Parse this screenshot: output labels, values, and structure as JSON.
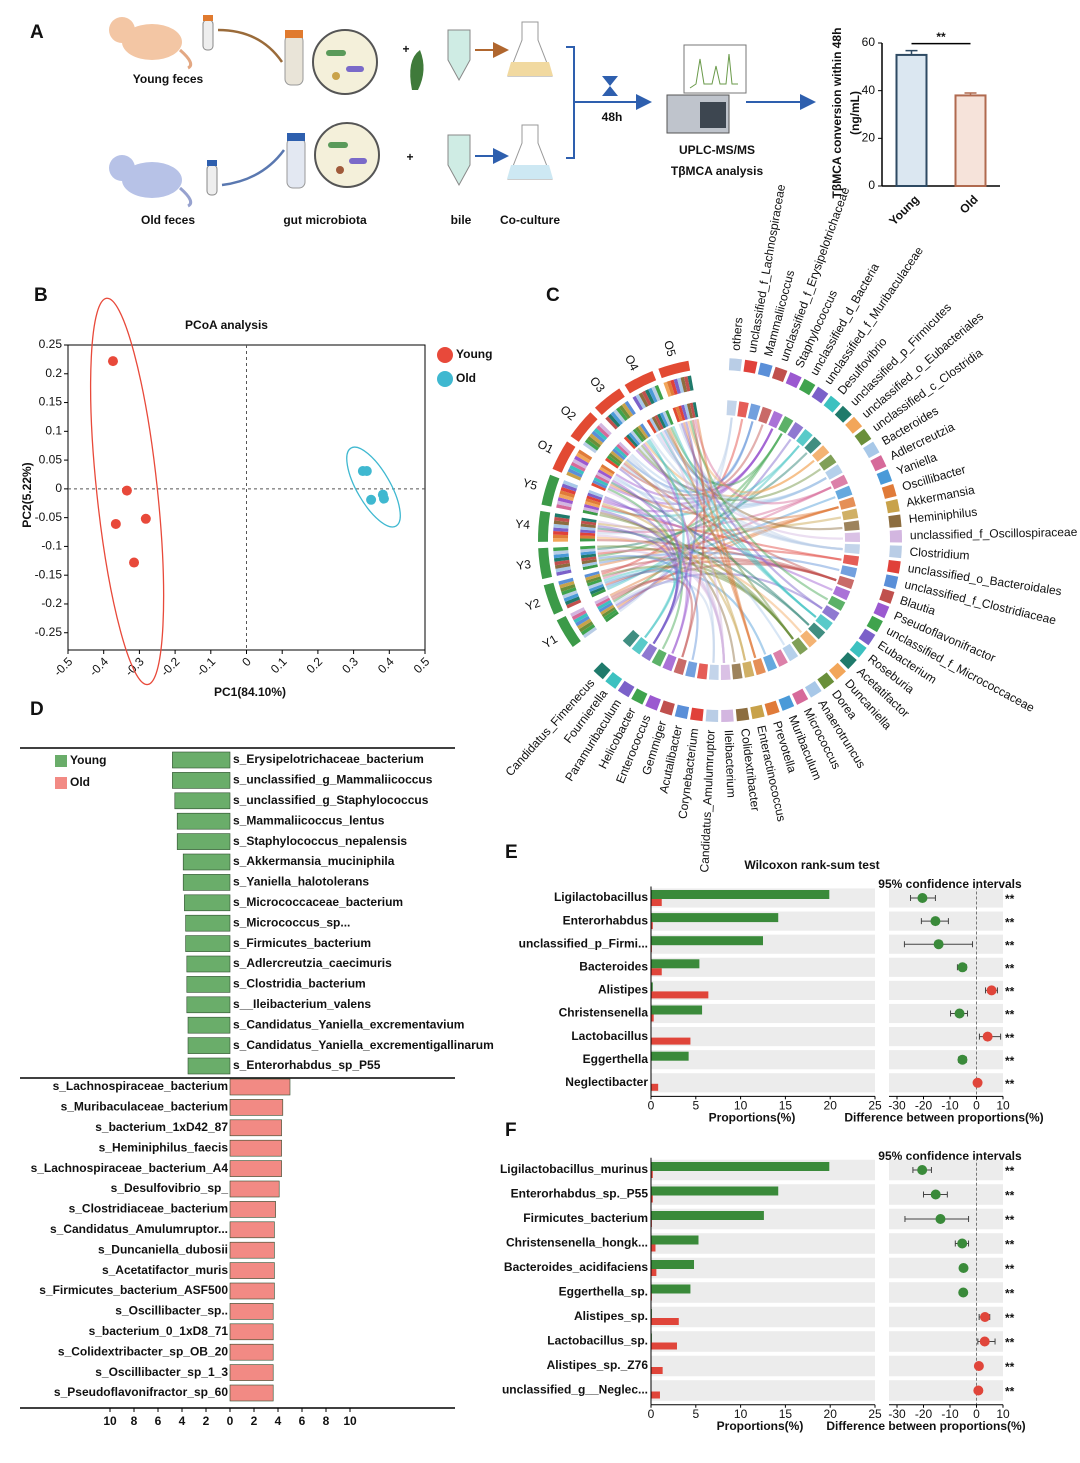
{
  "panel_labels": [
    "A",
    "B",
    "C",
    "D",
    "E",
    "F"
  ],
  "diagram": {
    "young_label": "Young feces",
    "old_label": "Old feces",
    "microbiota_label": "gut microbiota",
    "bile_label": "bile",
    "coculture_label": "Co-culture",
    "time_label": "48h",
    "method_line1": "UPLC-MS/MS",
    "method_line2": "TβMCA analysis"
  },
  "chart_data": [
    {
      "type": "bar",
      "ylabel": "TβMCA conversion within 48h",
      "ylabel_unit": "(ng/mL)",
      "categories": [
        "Young",
        "Old"
      ],
      "values": [
        55,
        38
      ],
      "errors": [
        1.8,
        1.0
      ],
      "colors": [
        "#dbe7f1",
        "#f6e3da"
      ],
      "edge_colors": [
        "#2e4a63",
        "#b06a4f"
      ],
      "ylim": [
        0,
        60
      ],
      "yticks": [
        0,
        20,
        40,
        60
      ],
      "annotation": "**"
    },
    {
      "type": "scatter",
      "title": "PCoA analysis",
      "xlabel": "PC1(84.10%)",
      "ylabel": "PC2(5.22%)",
      "xlim": [
        -0.5,
        0.5
      ],
      "xticks": [
        -0.5,
        -0.4,
        -0.3,
        -0.2,
        -0.1,
        0,
        0.1,
        0.2,
        0.3,
        0.4,
        0.5
      ],
      "ylim": [
        -0.28,
        0.25
      ],
      "yticks": [
        0.25,
        0.2,
        0.15,
        0.1,
        0.05,
        0,
        -0.05,
        -0.1,
        -0.15,
        -0.2,
        -0.25
      ],
      "legend": "right-outside",
      "series": [
        {
          "name": "Young",
          "color": "#e8493a",
          "x": [
            -0.374,
            -0.335,
            -0.366,
            -0.282,
            -0.315
          ],
          "y": [
            0.222,
            -0.003,
            -0.061,
            -0.052,
            -0.128
          ]
        },
        {
          "name": "Old",
          "color": "#3fb8d0",
          "x": [
            0.326,
            0.337,
            0.349,
            0.382,
            0.385
          ],
          "y": [
            0.031,
            0.031,
            -0.019,
            -0.01,
            -0.017
          ]
        }
      ]
    },
    {
      "type": "chord",
      "samples": [
        "Y1",
        "Y2",
        "Y3",
        "Y4",
        "Y5",
        "O1",
        "O2",
        "O3",
        "O4",
        "O5"
      ],
      "sample_colors": [
        "#3c9a48",
        "#3c9a48",
        "#3c9a48",
        "#3c9a48",
        "#3c9a48",
        "#e24a33",
        "#e24a33",
        "#e24a33",
        "#e24a33",
        "#e24a33"
      ],
      "taxa": [
        "others",
        "unclassified_f_Lachnospiraceae",
        "Mammaliicoccus",
        "unclassified_f_Erysipelotrichaceae",
        "Staphylococcus",
        "unclassified_d_Bacteria",
        "unclassified_f_Muribaculaceae",
        "Desulfovibrio",
        "unclassified_p_Firmicutes",
        "unclassified_o_Eubacteriales",
        "unclassified_c_Clostridia",
        "Bacteroides",
        "Adlercreutzia",
        "Yaniella",
        "Oscillibacter",
        "Akkermansia",
        "Heminiphilus",
        "unclassified_f_Oscillospiraceae",
        "Clostridium",
        "unclassified_o_Bacteroidales",
        "unclassified_f_Clostridiaceae",
        "Blautia",
        "Pseudoflavonifractor",
        "unclassified_f_Micrococcaceae",
        "Eubacterium",
        "Roseburia",
        "Acetatifactor",
        "Duncaniella",
        "Dorea",
        "Anaerotruncus",
        "Micrococcus",
        "Muribaculum",
        "Prevotella",
        "Enteractinococcus",
        "Colidextribacter",
        "Ileibacterium",
        "Candidatus_Amulumruptor",
        "Corynebacterium",
        "Acutalibacter",
        "Gemmiger",
        "Enterococcus",
        "Helicobacter",
        "Paramuribaculum",
        "Fournierella",
        "Candidatus_Fimenecus"
      ],
      "palette": [
        "#b9cde6",
        "#e0413a",
        "#5a8fd8",
        "#c0504d",
        "#9b59d0",
        "#3fa34d",
        "#7b61c9",
        "#3cc1c0",
        "#1f7a6b",
        "#f2a65a",
        "#6a8f3a",
        "#a8c8e8",
        "#d66a9a",
        "#4a9ad8",
        "#e07b39",
        "#c8a24a",
        "#8c6d3f",
        "#d3b6e0"
      ]
    },
    {
      "type": "diverging_bar",
      "xlim": [
        -10,
        10
      ],
      "xticks": [
        {
          "value": -10,
          "label": "10"
        },
        {
          "value": -8,
          "label": "8"
        },
        {
          "value": -6,
          "label": "6"
        },
        {
          "value": -4,
          "label": "4"
        },
        {
          "value": -2,
          "label": "2"
        },
        0,
        2,
        4,
        6,
        8,
        10
      ],
      "series": [
        {
          "name": "Young",
          "color": "#6aad6a",
          "categories": [
            "s_Erysipelotrichaceae_bacterium",
            "s_unclassified_g_Mammaliicoccus",
            "s_unclassified_g_Staphylococcus",
            "s_Mammaliicoccus_lentus",
            "s_Staphylococcus_nepalensis",
            "s_Akkermansia_muciniphila",
            "s_Yaniella_halotolerans",
            "s_Micrococcaceae_bacterium",
            "s_Micrococcus_sp...",
            "s_Firmicutes_bacterium",
            "s_Adlercreutzia_caecimuris",
            "s_Clostridia_bacterium",
            "s__Ileibacterium_valens",
            "s_Candidatus_Yaniella_excrementavium",
            "s_Candidatus_Yaniella_excrementigallinarum",
            "s_Enterorhabdus_sp_P55"
          ],
          "values": [
            -4.8,
            -4.8,
            -4.6,
            -4.4,
            -4.4,
            -3.9,
            -3.9,
            -3.8,
            -3.7,
            -3.7,
            -3.6,
            -3.6,
            -3.6,
            -3.5,
            -3.5,
            -3.5
          ]
        },
        {
          "name": "Old",
          "color": "#f28a84",
          "categories": [
            "s_Lachnospiraceae_bacterium",
            "s_Muribaculaceae_bacterium",
            "s_bacterium_1xD42_87",
            "s_Heminiphilus_faecis",
            "s_Lachnospiraceae_bacterium_A4",
            "s_Desulfovibrio_sp_",
            "s_Clostridiaceae_bacterium",
            "s_Candidatus_Amulumruptor...",
            "s_Duncaniella_dubosii",
            "s_Acetatifactor_muris",
            "s_Firmicutes_bacterium_ASF500",
            "s_Oscillibacter_sp..",
            "s_bacterium_0_1xD8_71",
            "s_Colidextribacter_sp_OB_20",
            "s_Oscillibacter_sp_1_3",
            "s_Pseudoflavonifractor_sp_60"
          ],
          "values": [
            5.0,
            4.4,
            4.3,
            4.3,
            4.3,
            4.1,
            3.8,
            3.7,
            3.7,
            3.7,
            3.7,
            3.6,
            3.6,
            3.6,
            3.6,
            3.6
          ]
        }
      ]
    },
    {
      "type": "extended_error_bar",
      "title": "Wilcoxon rank-sum test",
      "ci_label": "95% confidence intervals",
      "xlabel": "Proportions(%)",
      "diff_xlabel": "Difference between proportions(%)",
      "xlim": [
        0,
        25
      ],
      "xticks": [
        0,
        5,
        10,
        15,
        20,
        25
      ],
      "diff_xlim": [
        -30,
        10
      ],
      "diff_xticks": [
        -30,
        -20,
        -10,
        0,
        10
      ],
      "categories": [
        "Ligilactobacillus",
        "Enterorhabdus",
        "unclassified_p_Firmi...",
        "Bacteroides",
        "Alistipes",
        "Christensenella",
        "Lactobacillus",
        "Eggerthella",
        "Neglectibacter"
      ],
      "series": [
        {
          "color": "#3a8a3a",
          "values": [
            19.9,
            14.2,
            12.5,
            5.4,
            0.2,
            5.7,
            0,
            4.2,
            0
          ]
        },
        {
          "color": "#e0453a",
          "values": [
            1.2,
            0.2,
            0.1,
            1.2,
            6.4,
            0.3,
            4.4,
            0,
            0.8
          ]
        }
      ],
      "difference": {
        "values": [
          -20.4,
          -15.5,
          -14.3,
          -5.3,
          5.7,
          -6.4,
          4.2,
          -5.3,
          0.4
        ],
        "ci_low": [
          -24.9,
          -20.8,
          -27.2,
          -7.2,
          3.4,
          -9.8,
          1.1,
          -6.8,
          0.1
        ],
        "ci_high": [
          -15.5,
          -10.6,
          -1.5,
          -3.8,
          7.9,
          -3.4,
          9.1,
          -3.8,
          0.8
        ]
      },
      "significance": [
        "**",
        "**",
        "**",
        "**",
        "**",
        "**",
        "**",
        "**",
        "**"
      ]
    },
    {
      "type": "extended_error_bar",
      "ci_label": "95% confidence intervals",
      "xlabel": "Proportions(%)",
      "diff_xlabel": "Difference between proportions(%)",
      "xlim": [
        0,
        25
      ],
      "xticks": [
        0,
        5,
        10,
        15,
        20,
        25
      ],
      "diff_xlim": [
        -30,
        10
      ],
      "diff_xticks": [
        -30,
        -20,
        -10,
        0,
        10
      ],
      "categories": [
        "Ligilactobacillus_murinus",
        "Enterorhabdus_sp._P55",
        "Firmicutes_bacterium",
        "Christensenella_hongk...",
        "Bacteroides_acidifaciens",
        "Eggerthella_sp.",
        "Alistipes_sp.",
        "Lactobacillus_sp.",
        "Alistipes_sp._Z76",
        "unclassified_g__Neglec..."
      ],
      "series": [
        {
          "color": "#3a8a3a",
          "values": [
            19.9,
            14.2,
            12.6,
            5.3,
            4.8,
            4.4,
            0.1,
            0.1,
            0,
            0
          ]
        },
        {
          "color": "#e0453a",
          "values": [
            0.2,
            0.2,
            0.1,
            0.5,
            0.6,
            0.1,
            3.1,
            2.9,
            1.3,
            1.0
          ]
        }
      ],
      "difference": {
        "values": [
          -20.5,
          -15.4,
          -13.6,
          -5.4,
          -4.9,
          -5.0,
          3.2,
          3.1,
          0.9,
          0.7
        ],
        "ci_low": [
          -24,
          -20,
          -27,
          -8,
          -6,
          -6,
          1,
          0.5,
          0.5,
          0.4
        ],
        "ci_high": [
          -17,
          -11,
          -3,
          -3,
          -4,
          -4,
          5,
          7,
          1.3,
          1.1
        ]
      },
      "significance": [
        "**",
        "**",
        "**",
        "**",
        "**",
        "**",
        "**",
        "**",
        "**",
        "**"
      ]
    }
  ]
}
